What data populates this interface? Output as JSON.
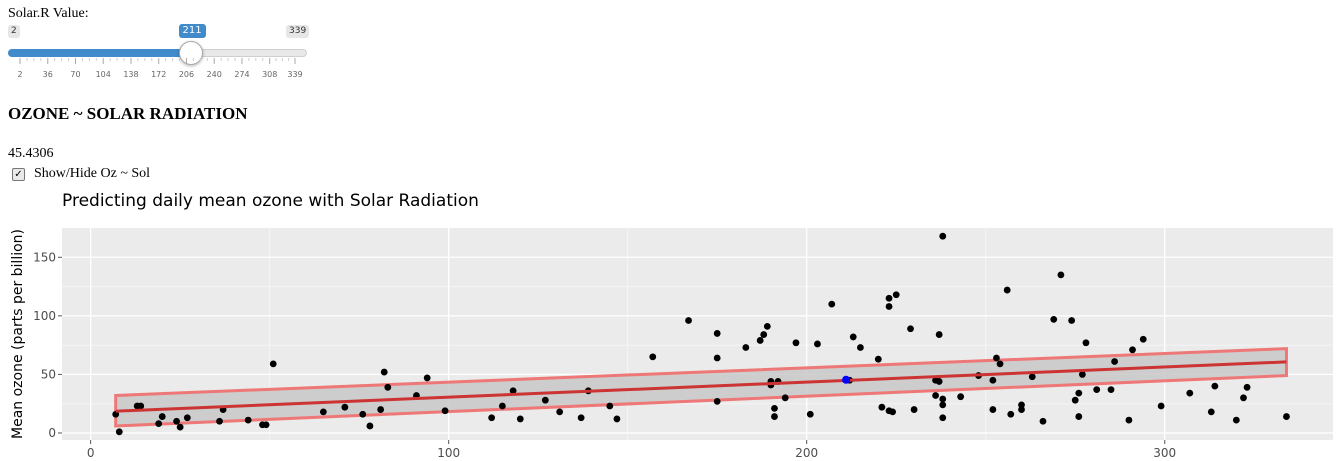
{
  "slider": {
    "label": "Solar.R Value:",
    "min": 2,
    "max": 339,
    "value": 211,
    "min_label": "2",
    "max_label": "339",
    "value_label": "211",
    "ticks": [
      "2",
      "36",
      "70",
      "104",
      "138",
      "172",
      "206",
      "240",
      "274",
      "308",
      "339"
    ],
    "accent_color": "#428bca"
  },
  "section": {
    "title": "OZONE ~ SOLAR RADIATION"
  },
  "prediction": {
    "value": "45.4306"
  },
  "toggle": {
    "label": "Show/Hide Oz ~ Sol",
    "checked": true,
    "check_glyph": "✓"
  },
  "chart_data": {
    "type": "scatter",
    "title": "Predicting daily mean ozone with Solar Radiation",
    "xlabel": "",
    "ylabel": "Mean ozone (parts per billion)",
    "xlim": [
      -8,
      347
    ],
    "ylim": [
      -6,
      175
    ],
    "xticks": [
      0,
      100,
      200,
      300
    ],
    "yticks": [
      0,
      50,
      100,
      150
    ],
    "grid": true,
    "point_color": "#000000",
    "highlight_color": "#0000ff",
    "fit_color": "#cc3333",
    "band_color": "#ee7777",
    "fit": {
      "x": [
        7,
        334
      ],
      "y": [
        18.6,
        60.7
      ]
    },
    "band": {
      "x": [
        7,
        334
      ],
      "upper": [
        32,
        72
      ],
      "lower": [
        6,
        49
      ]
    },
    "highlight_point": {
      "x": 211,
      "y": 45.43
    },
    "points": [
      [
        7,
        16
      ],
      [
        8,
        1
      ],
      [
        13,
        23
      ],
      [
        14,
        23
      ],
      [
        19,
        8
      ],
      [
        20,
        14
      ],
      [
        24,
        10
      ],
      [
        25,
        5
      ],
      [
        27,
        13
      ],
      [
        36,
        10
      ],
      [
        37,
        20
      ],
      [
        44,
        11
      ],
      [
        48,
        7
      ],
      [
        49,
        7
      ],
      [
        51,
        59
      ],
      [
        65,
        18
      ],
      [
        71,
        22
      ],
      [
        76,
        16
      ],
      [
        78,
        6
      ],
      [
        81,
        20
      ],
      [
        82,
        52
      ],
      [
        83,
        39
      ],
      [
        91,
        32
      ],
      [
        94,
        47
      ],
      [
        99,
        19
      ],
      [
        112,
        13
      ],
      [
        115,
        23
      ],
      [
        118,
        36
      ],
      [
        120,
        12
      ],
      [
        127,
        28
      ],
      [
        131,
        18
      ],
      [
        137,
        13
      ],
      [
        139,
        36
      ],
      [
        145,
        23
      ],
      [
        147,
        12
      ],
      [
        157,
        65
      ],
      [
        167,
        96
      ],
      [
        175,
        85
      ],
      [
        175,
        64
      ],
      [
        175,
        27
      ],
      [
        183,
        73
      ],
      [
        187,
        79
      ],
      [
        188,
        84
      ],
      [
        189,
        91
      ],
      [
        190,
        44
      ],
      [
        190,
        41
      ],
      [
        191,
        14
      ],
      [
        191,
        21
      ],
      [
        192,
        44
      ],
      [
        194,
        30
      ],
      [
        197,
        77
      ],
      [
        201,
        16
      ],
      [
        203,
        76
      ],
      [
        207,
        110
      ],
      [
        212,
        45
      ],
      [
        213,
        82
      ],
      [
        215,
        73
      ],
      [
        220,
        63
      ],
      [
        221,
        22
      ],
      [
        223,
        108
      ],
      [
        223,
        115
      ],
      [
        223,
        19
      ],
      [
        224,
        18
      ],
      [
        225,
        118
      ],
      [
        229,
        89
      ],
      [
        230,
        20
      ],
      [
        236,
        45
      ],
      [
        236,
        32
      ],
      [
        237,
        44
      ],
      [
        237,
        84
      ],
      [
        238,
        168
      ],
      [
        238,
        29
      ],
      [
        238,
        24
      ],
      [
        238,
        13
      ],
      [
        243,
        31
      ],
      [
        248,
        49
      ],
      [
        252,
        45
      ],
      [
        252,
        20
      ],
      [
        253,
        64
      ],
      [
        254,
        59
      ],
      [
        256,
        122
      ],
      [
        257,
        16
      ],
      [
        260,
        24
      ],
      [
        260,
        20
      ],
      [
        263,
        48
      ],
      [
        266,
        10
      ],
      [
        269,
        97
      ],
      [
        271,
        135
      ],
      [
        274,
        96
      ],
      [
        275,
        28
      ],
      [
        276,
        34
      ],
      [
        276,
        14
      ],
      [
        277,
        50
      ],
      [
        278,
        77
      ],
      [
        281,
        37
      ],
      [
        285,
        37
      ],
      [
        286,
        61
      ],
      [
        290,
        11
      ],
      [
        291,
        71
      ],
      [
        294,
        80
      ],
      [
        299,
        23
      ],
      [
        307,
        34
      ],
      [
        313,
        18
      ],
      [
        314,
        40
      ],
      [
        320,
        11
      ],
      [
        322,
        30
      ],
      [
        323,
        39
      ],
      [
        334,
        14
      ]
    ]
  }
}
